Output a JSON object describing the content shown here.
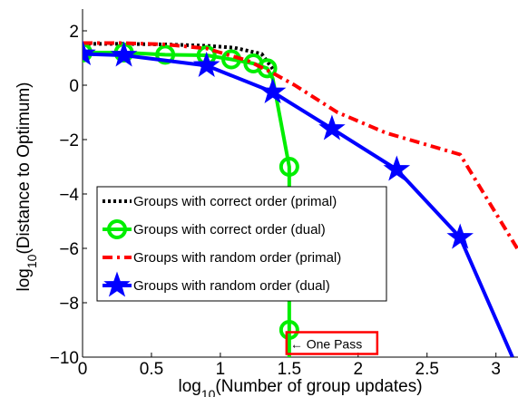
{
  "chart_data": {
    "type": "line",
    "xlabel": "log10(Number of group updates)",
    "ylabel": "log10(Distance to Optimum)",
    "xlim": [
      0,
      3.16
    ],
    "ylim": [
      -10,
      2.8
    ],
    "x_ticks": [
      0,
      0.5,
      1,
      1.5,
      2,
      2.5,
      3
    ],
    "x_tick_labels": [
      "0",
      "0.5",
      "1",
      "1.5",
      "2",
      "2.5",
      "3"
    ],
    "y_ticks": [
      2,
      0,
      -2,
      -4,
      -6,
      -8,
      -10
    ],
    "y_tick_labels": [
      "2",
      "0",
      "−2",
      "−4",
      "−6",
      "−8",
      "−10"
    ],
    "grid": false,
    "legend_position": "lower-left",
    "series": [
      {
        "name": "Groups with correct order (primal)",
        "color": "#000000",
        "style": "dotted",
        "marker": "none",
        "x": [
          0,
          0.3,
          0.6,
          0.9,
          1.1,
          1.3,
          1.38
        ],
        "y": [
          1.52,
          1.52,
          1.5,
          1.45,
          1.38,
          1.15,
          0.6
        ]
      },
      {
        "name": "Groups with correct order (dual)",
        "color": "#00ee00",
        "style": "solid",
        "marker": "circle",
        "x": [
          0,
          0.3,
          0.6,
          0.9,
          1.08,
          1.24,
          1.34,
          1.38,
          1.5,
          1.5,
          1.5
        ],
        "y": [
          1.2,
          1.2,
          1.12,
          1.1,
          0.95,
          0.8,
          0.62,
          0.25,
          -3.0,
          -9.0,
          -10.0
        ],
        "marker_indices": [
          0,
          1,
          2,
          3,
          4,
          5,
          6,
          8,
          9
        ]
      },
      {
        "name": "Groups with random order (primal)",
        "color": "#ff0000",
        "style": "dashdot",
        "marker": "none",
        "x": [
          0,
          0.3,
          0.6,
          0.9,
          1.2,
          1.38,
          1.54,
          1.85,
          2.2,
          2.74,
          3.16
        ],
        "y": [
          1.55,
          1.55,
          1.5,
          1.35,
          0.9,
          0.45,
          0.0,
          -1.0,
          -1.75,
          -2.55,
          -6.05
        ]
      },
      {
        "name": "Groups with random order (dual)",
        "color": "#0000ff",
        "style": "solid",
        "marker": "star",
        "x": [
          0,
          0.3,
          0.9,
          1.38,
          1.81,
          2.28,
          2.74,
          3.12
        ],
        "y": [
          1.15,
          1.1,
          0.72,
          -0.25,
          -1.6,
          -3.1,
          -5.6,
          -10.0
        ],
        "marker_indices": [
          0,
          1,
          2,
          3,
          4,
          5,
          6
        ]
      }
    ],
    "annotations": [
      {
        "text": "← One Pass",
        "x": 1.5,
        "y": -9.55,
        "box_color": "#ff0000"
      }
    ]
  }
}
